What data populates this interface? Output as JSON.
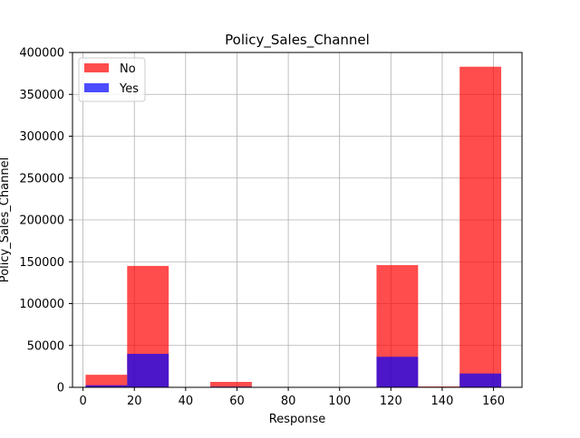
{
  "chart_data": {
    "type": "bar",
    "title": "Policy_Sales_Channel",
    "xlabel": "Response",
    "ylabel": "Policy_Sales_Channel",
    "xlim": [
      -4.1,
      171.1
    ],
    "ylim": [
      0,
      400000
    ],
    "xticks": [
      0,
      20,
      40,
      60,
      80,
      100,
      120,
      140,
      160
    ],
    "yticks": [
      0,
      50000,
      100000,
      150000,
      200000,
      250000,
      300000,
      350000,
      400000
    ],
    "grid": true,
    "legend_placement": "top-left",
    "bin_edges": [
      1,
      17.2,
      33.4,
      49.6,
      65.8,
      82,
      98.2,
      114.4,
      130.6,
      146.8,
      163
    ],
    "series": [
      {
        "name": "No",
        "color": "#ff0000",
        "opacity": 0.7,
        "values": [
          15000,
          145000,
          0,
          6500,
          0,
          0,
          0,
          146000,
          1000,
          383000
        ]
      },
      {
        "name": "Yes",
        "color": "#0000ff",
        "opacity": 0.7,
        "values": [
          2500,
          40000,
          0,
          800,
          0,
          0,
          0,
          36500,
          200,
          16500
        ]
      }
    ]
  }
}
